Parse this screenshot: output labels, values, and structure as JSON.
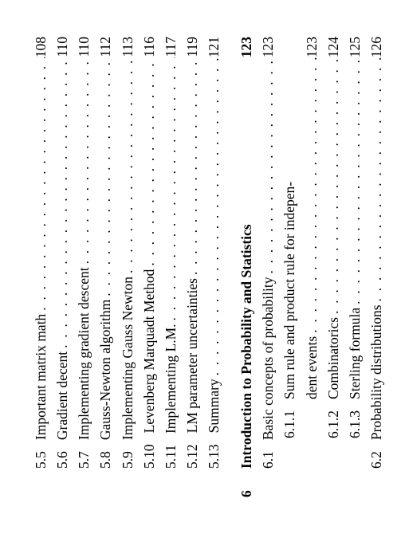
{
  "font": {
    "body_pt": 17.5,
    "chapter_pt": 17.5
  },
  "colors": {
    "text": "#000000",
    "background": "#ffffff"
  },
  "leader": ". . . . . . . . . . . . . . . . . . . . . . . . . . . . . . . . . . . . . . . . . . . . . . . . . . . . . . . . . . . .",
  "entries": [
    {
      "kind": "section",
      "indent": 1,
      "num": "5.5",
      "title": "Important matrix math",
      "page": "108"
    },
    {
      "kind": "section",
      "indent": 1,
      "num": "5.6",
      "title": "Gradient decent",
      "page": "110"
    },
    {
      "kind": "section",
      "indent": 1,
      "num": "5.7",
      "title": "Implementing gradient descent",
      "page": "110"
    },
    {
      "kind": "section",
      "indent": 1,
      "num": "5.8",
      "title": "Gauss-Newton algorithm",
      "page": "112"
    },
    {
      "kind": "section",
      "indent": 1,
      "num": "5.9",
      "title": "Implementing Gauss Newton",
      "page": "113"
    },
    {
      "kind": "section",
      "indent": 1,
      "num": "5.10",
      "title": "Levenberg Marquadt Method",
      "page": "116"
    },
    {
      "kind": "section",
      "indent": 1,
      "num": "5.11",
      "title": "Implementing L.M.",
      "page": "117"
    },
    {
      "kind": "section",
      "indent": 1,
      "num": "5.12",
      "title": "LM parameter uncertainties",
      "page": "119"
    },
    {
      "kind": "section",
      "indent": 1,
      "num": "5.13",
      "title": "Summary",
      "page": "121"
    },
    {
      "kind": "gap"
    },
    {
      "kind": "chapter",
      "num": "6",
      "title": "Introduction to Probability and Statistics",
      "page": "123"
    },
    {
      "kind": "section",
      "indent": 1,
      "num": "6.1",
      "title": "Basic concepts of probability",
      "page": "123"
    },
    {
      "kind": "subsection-wrap",
      "indent": 2,
      "num": "6.1.1",
      "line1": "Sum rule and product rule for indepen-",
      "line2": "dent events",
      "page": "123"
    },
    {
      "kind": "section",
      "indent": 2,
      "num": "6.1.2",
      "title": "Combinatorics",
      "page": "124"
    },
    {
      "kind": "section",
      "indent": 2,
      "num": "6.1.3",
      "title": "Sterling formula",
      "page": "125"
    },
    {
      "kind": "section",
      "indent": 1,
      "num": "6.2",
      "title": "Probability distributions",
      "page": "126"
    }
  ]
}
